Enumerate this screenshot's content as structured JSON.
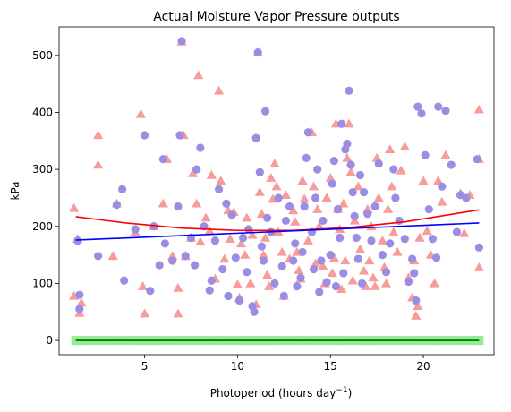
{
  "chart_data": {
    "type": "scatter",
    "title": "Actual Moisture Vapor Pressure outputs",
    "xlabel": "Photoperiod (hours day",
    "xlabel_sup": "−1",
    "xlabel_tail": ")",
    "ylabel": "kPa",
    "xlim": [
      0.4,
      23.8
    ],
    "ylim": [
      -25,
      550
    ],
    "xticks": [
      5,
      10,
      15,
      20
    ],
    "yticks": [
      0,
      100,
      200,
      300,
      400,
      500
    ],
    "grid": false,
    "series": [
      {
        "marker": "circle",
        "color": "#9b8de3",
        "points": [
          [
            1.5,
            55
          ],
          [
            1.5,
            80
          ],
          [
            1.4,
            175
          ],
          [
            2.5,
            148
          ],
          [
            3.5,
            238
          ],
          [
            3.8,
            265
          ],
          [
            3.9,
            105
          ],
          [
            4.5,
            195
          ],
          [
            5.0,
            360
          ],
          [
            5.3,
            87
          ],
          [
            5.5,
            200
          ],
          [
            5.8,
            132
          ],
          [
            6.0,
            318
          ],
          [
            6.1,
            170
          ],
          [
            6.5,
            140
          ],
          [
            6.8,
            235
          ],
          [
            6.9,
            360
          ],
          [
            7.0,
            525
          ],
          [
            7.2,
            148
          ],
          [
            7.5,
            180
          ],
          [
            7.7,
            132
          ],
          [
            7.8,
            300
          ],
          [
            8.0,
            338
          ],
          [
            8.2,
            200
          ],
          [
            8.5,
            88
          ],
          [
            8.6,
            105
          ],
          [
            8.8,
            175
          ],
          [
            9.0,
            265
          ],
          [
            9.2,
            125
          ],
          [
            9.4,
            240
          ],
          [
            9.5,
            78
          ],
          [
            9.7,
            220
          ],
          [
            9.9,
            145
          ],
          [
            10.1,
            70
          ],
          [
            10.3,
            180
          ],
          [
            10.5,
            120
          ],
          [
            10.6,
            195
          ],
          [
            10.8,
            60
          ],
          [
            10.9,
            50
          ],
          [
            11.0,
            355
          ],
          [
            11.1,
            505
          ],
          [
            11.2,
            295
          ],
          [
            11.3,
            165
          ],
          [
            11.4,
            140
          ],
          [
            11.5,
            402
          ],
          [
            11.6,
            215
          ],
          [
            11.8,
            190
          ],
          [
            12.0,
            100
          ],
          [
            12.2,
            250
          ],
          [
            12.4,
            130
          ],
          [
            12.5,
            78
          ],
          [
            12.6,
            210
          ],
          [
            12.8,
            235
          ],
          [
            13.0,
            140
          ],
          [
            13.1,
            170
          ],
          [
            13.2,
            95
          ],
          [
            13.4,
            110
          ],
          [
            13.5,
            155
          ],
          [
            13.6,
            235
          ],
          [
            13.7,
            320
          ],
          [
            13.8,
            365
          ],
          [
            14.0,
            190
          ],
          [
            14.1,
            125
          ],
          [
            14.2,
            250
          ],
          [
            14.3,
            300
          ],
          [
            14.4,
            85
          ],
          [
            14.5,
            140
          ],
          [
            14.6,
            210
          ],
          [
            14.8,
            102
          ],
          [
            15.0,
            150
          ],
          [
            15.1,
            275
          ],
          [
            15.2,
            315
          ],
          [
            15.3,
            95
          ],
          [
            15.4,
            230
          ],
          [
            15.5,
            180
          ],
          [
            15.6,
            380
          ],
          [
            15.7,
            118
          ],
          [
            15.8,
            335
          ],
          [
            15.9,
            345
          ],
          [
            16.0,
            438
          ],
          [
            16.1,
            308
          ],
          [
            16.2,
            260
          ],
          [
            16.3,
            218
          ],
          [
            16.4,
            180
          ],
          [
            16.5,
            143
          ],
          [
            16.6,
            290
          ],
          [
            16.7,
            100
          ],
          [
            16.8,
            260
          ],
          [
            17.0,
            222
          ],
          [
            17.2,
            175
          ],
          [
            17.4,
            235
          ],
          [
            17.6,
            310
          ],
          [
            17.8,
            150
          ],
          [
            18.0,
            120
          ],
          [
            18.2,
            170
          ],
          [
            18.4,
            300
          ],
          [
            18.5,
            250
          ],
          [
            18.7,
            210
          ],
          [
            19.0,
            178
          ],
          [
            19.2,
            103
          ],
          [
            19.4,
            143
          ],
          [
            19.5,
            118
          ],
          [
            19.6,
            70
          ],
          [
            19.7,
            410
          ],
          [
            19.9,
            398
          ],
          [
            20.1,
            325
          ],
          [
            20.3,
            230
          ],
          [
            20.5,
            178
          ],
          [
            20.7,
            145
          ],
          [
            20.8,
            410
          ],
          [
            21.0,
            270
          ],
          [
            21.2,
            403
          ],
          [
            21.5,
            308
          ],
          [
            21.8,
            190
          ],
          [
            22.0,
            255
          ],
          [
            22.3,
            250
          ],
          [
            22.9,
            318
          ],
          [
            23.0,
            163
          ]
        ]
      },
      {
        "marker": "triangle",
        "color": "#f79b9b",
        "points": [
          [
            1.2,
            78
          ],
          [
            1.2,
            232
          ],
          [
            1.4,
            178
          ],
          [
            1.5,
            48
          ],
          [
            1.6,
            66
          ],
          [
            2.5,
            360
          ],
          [
            2.5,
            308
          ],
          [
            3.3,
            148
          ],
          [
            3.5,
            240
          ],
          [
            4.5,
            190
          ],
          [
            4.8,
            397
          ],
          [
            4.9,
            95
          ],
          [
            5.0,
            47
          ],
          [
            5.5,
            200
          ],
          [
            6.0,
            240
          ],
          [
            6.2,
            318
          ],
          [
            6.5,
            148
          ],
          [
            6.8,
            92
          ],
          [
            6.8,
            47
          ],
          [
            7.0,
            524
          ],
          [
            7.1,
            360
          ],
          [
            7.2,
            148
          ],
          [
            7.5,
            180
          ],
          [
            7.6,
            293
          ],
          [
            7.8,
            240
          ],
          [
            7.9,
            465
          ],
          [
            8.0,
            173
          ],
          [
            8.3,
            215
          ],
          [
            8.5,
            192
          ],
          [
            8.6,
            290
          ],
          [
            8.8,
            108
          ],
          [
            9.0,
            438
          ],
          [
            9.1,
            280
          ],
          [
            9.3,
            143
          ],
          [
            9.5,
            228
          ],
          [
            9.6,
            178
          ],
          [
            9.8,
            225
          ],
          [
            10.0,
            98
          ],
          [
            10.1,
            75
          ],
          [
            10.2,
            170
          ],
          [
            10.4,
            150
          ],
          [
            10.5,
            215
          ],
          [
            10.7,
            100
          ],
          [
            10.8,
            185
          ],
          [
            11.0,
            63
          ],
          [
            11.1,
            505
          ],
          [
            11.2,
            260
          ],
          [
            11.3,
            222
          ],
          [
            11.4,
            150
          ],
          [
            11.5,
            180
          ],
          [
            11.6,
            115
          ],
          [
            11.7,
            95
          ],
          [
            11.8,
            285
          ],
          [
            11.9,
            248
          ],
          [
            12.0,
            310
          ],
          [
            12.1,
            270
          ],
          [
            12.2,
            190
          ],
          [
            12.4,
            155
          ],
          [
            12.5,
            78
          ],
          [
            12.6,
            255
          ],
          [
            12.8,
            143
          ],
          [
            13.0,
            228
          ],
          [
            13.1,
            208
          ],
          [
            13.2,
            155
          ],
          [
            13.3,
            123
          ],
          [
            13.4,
            108
          ],
          [
            13.5,
            280
          ],
          [
            13.6,
            248
          ],
          [
            13.8,
            175
          ],
          [
            14.0,
            365
          ],
          [
            14.1,
            270
          ],
          [
            14.2,
            135
          ],
          [
            14.3,
            230
          ],
          [
            14.4,
            200
          ],
          [
            14.6,
            130
          ],
          [
            14.7,
            100
          ],
          [
            14.8,
            250
          ],
          [
            15.0,
            285
          ],
          [
            15.1,
            118
          ],
          [
            15.2,
            145
          ],
          [
            15.3,
            380
          ],
          [
            15.4,
            230
          ],
          [
            15.5,
            195
          ],
          [
            15.6,
            90
          ],
          [
            15.7,
            240
          ],
          [
            15.8,
            140
          ],
          [
            15.9,
            320
          ],
          [
            16.0,
            380
          ],
          [
            16.1,
            295
          ],
          [
            16.2,
            105
          ],
          [
            16.3,
            210
          ],
          [
            16.5,
            270
          ],
          [
            16.6,
            160
          ],
          [
            16.8,
            122
          ],
          [
            16.9,
            95
          ],
          [
            17.0,
            230
          ],
          [
            17.1,
            140
          ],
          [
            17.2,
            200
          ],
          [
            17.3,
            110
          ],
          [
            17.4,
            95
          ],
          [
            17.5,
            320
          ],
          [
            17.6,
            250
          ],
          [
            17.8,
            175
          ],
          [
            17.9,
            128
          ],
          [
            18.0,
            100
          ],
          [
            18.1,
            230
          ],
          [
            18.2,
            335
          ],
          [
            18.3,
            270
          ],
          [
            18.4,
            190
          ],
          [
            18.6,
            155
          ],
          [
            18.8,
            298
          ],
          [
            19.0,
            340
          ],
          [
            19.2,
            110
          ],
          [
            19.4,
            75
          ],
          [
            19.5,
            140
          ],
          [
            19.6,
            43
          ],
          [
            19.7,
            60
          ],
          [
            19.8,
            180
          ],
          [
            20.0,
            280
          ],
          [
            20.2,
            192
          ],
          [
            20.4,
            150
          ],
          [
            20.6,
            100
          ],
          [
            20.8,
            280
          ],
          [
            21.0,
            243
          ],
          [
            21.2,
            325
          ],
          [
            22.0,
            258
          ],
          [
            22.2,
            188
          ],
          [
            22.5,
            255
          ],
          [
            23.0,
            405
          ],
          [
            23.0,
            318
          ],
          [
            23.0,
            128
          ]
        ]
      },
      {
        "marker": "square",
        "color": "#90ee90",
        "points": [
          [
            1.3,
            0
          ],
          [
            1.6,
            0
          ],
          [
            2.0,
            0
          ],
          [
            2.4,
            0
          ],
          [
            2.8,
            0
          ],
          [
            3.2,
            0
          ],
          [
            3.6,
            0
          ],
          [
            4.0,
            0
          ],
          [
            4.4,
            0
          ],
          [
            4.8,
            0
          ],
          [
            5.2,
            0
          ],
          [
            5.6,
            0
          ],
          [
            6.0,
            0
          ],
          [
            6.4,
            0
          ],
          [
            6.8,
            0
          ],
          [
            7.2,
            0
          ],
          [
            7.6,
            0
          ],
          [
            8.0,
            0
          ],
          [
            8.4,
            0
          ],
          [
            8.8,
            0
          ],
          [
            9.2,
            0
          ],
          [
            9.6,
            0
          ],
          [
            10.0,
            0
          ],
          [
            10.4,
            0
          ],
          [
            10.8,
            0
          ],
          [
            11.2,
            0
          ],
          [
            11.6,
            0
          ],
          [
            12.0,
            0
          ],
          [
            12.4,
            0
          ],
          [
            12.8,
            0
          ],
          [
            13.2,
            0
          ],
          [
            13.6,
            0
          ],
          [
            14.0,
            0
          ],
          [
            14.4,
            0
          ],
          [
            14.8,
            0
          ],
          [
            15.2,
            0
          ],
          [
            15.6,
            0
          ],
          [
            16.0,
            0
          ],
          [
            16.4,
            0
          ],
          [
            16.8,
            0
          ],
          [
            17.2,
            0
          ],
          [
            17.6,
            0
          ],
          [
            18.0,
            0
          ],
          [
            18.4,
            0
          ],
          [
            18.8,
            0
          ],
          [
            19.2,
            0
          ],
          [
            19.6,
            0
          ],
          [
            20.0,
            0
          ],
          [
            20.4,
            0
          ],
          [
            20.8,
            0
          ],
          [
            21.2,
            0
          ],
          [
            21.6,
            0
          ],
          [
            22.0,
            0
          ],
          [
            22.4,
            0
          ],
          [
            22.8,
            0
          ],
          [
            23.0,
            0
          ]
        ]
      }
    ],
    "lines": [
      {
        "color": "#ff0000",
        "points": [
          [
            1.3,
            217
          ],
          [
            4,
            206
          ],
          [
            7,
            197
          ],
          [
            10,
            193
          ],
          [
            13,
            193
          ],
          [
            16,
            198
          ],
          [
            19,
            208
          ],
          [
            23,
            229
          ]
        ]
      },
      {
        "color": "#0000ff",
        "points": [
          [
            1.3,
            176
          ],
          [
            23,
            206
          ]
        ]
      },
      {
        "color": "#006400",
        "points": [
          [
            1.3,
            0
          ],
          [
            23,
            0
          ]
        ]
      }
    ]
  }
}
